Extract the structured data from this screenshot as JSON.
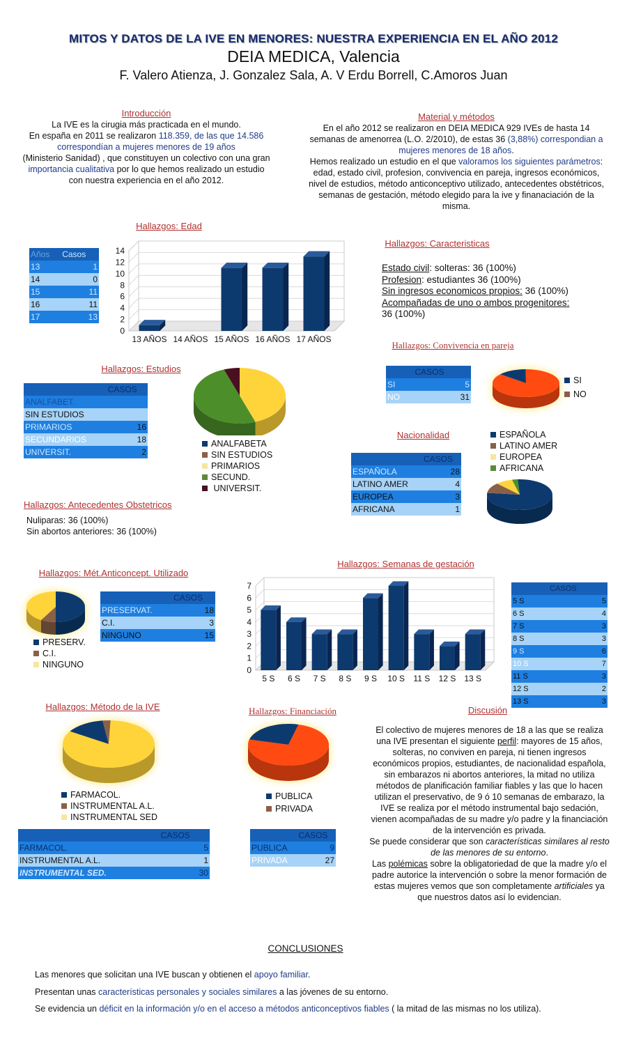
{
  "header": {
    "title": "MITOS Y DATOS DE LA IVE EN MENORES:  NUESTRA EXPERIENCIA EN EL AÑO 2012",
    "subtitle": "DEIA MEDICA, Valencia",
    "authors": "F. Valero Atienza,  J. Gonzalez Sala,  A. V Erdu Borrell, C.Amoros Juan"
  },
  "intro": {
    "heading": "Introducción",
    "p1": "La IVE es la cirugia más practicada en el mundo.",
    "p2a": "En españa en 2011 se realizaron ",
    "p2b": "118.359, de las que 14.586 correspondían a mujeres menores de 19 años",
    "p3a": "(Ministerio Sanidad) , que constituyen un colectivo con una gran ",
    "p3b": "importancia cualitativa",
    "p3c": " por lo que hemos realizado un estudio con nuestra experiencia en el año 2012."
  },
  "methods": {
    "heading": "Material y métodos",
    "p1a": "En el año 2012 se realizaron en DEIA MEDICA 929 IVEs de hasta 14 semanas de amenorrea (L.O. 2/2010), de estas 36 ",
    "p1b": "(3,88%) correspondian a mujeres menores de 18 años",
    "p1c": ".",
    "p2a": "Hemos realizado un estudio en el que ",
    "p2b": "valoramos los siguientes parámetros",
    "p2c": ": edad, estado civil, profesion, convivencia en pareja, ingresos económicos, nivel de estudios, método anticonceptivo utilizado, antecedentes obstétricos, semanas de gestación, método elegido para la ive y finanaciación de la misma."
  },
  "edad": {
    "heading": "Hallazgos:  Edad",
    "col1": "Años",
    "col2": "Casos",
    "rows": [
      {
        "a": "13",
        "c": "1"
      },
      {
        "a": "14",
        "c": "0"
      },
      {
        "a": "15",
        "c": "11"
      },
      {
        "a": "16",
        "c": "11"
      },
      {
        "a": "17",
        "c": "13"
      }
    ]
  },
  "caracteristicas": {
    "heading": "Hallazgos: Caracteristicas",
    "l1a": "Estado civil",
    ":": ":",
    "l1b": ":  solteras: 36 (100%)",
    "l2a": "Profesion",
    "l2b": ": estudiantes 36 (100%)",
    "l3a": "Sin ingresos economicos propios:",
    "l3b": "   36 (100%)",
    "l4a": "Acompañadas de uno o ambos progenitores:",
    "l4b": "36 (100%)"
  },
  "convivencia": {
    "heading": "Hallazgos: Convivencia en pareja",
    "col": "CASOS",
    "rows": [
      {
        "l": "SI",
        "v": "5"
      },
      {
        "l": "NO",
        "v": "31"
      }
    ],
    "legend": [
      "SI",
      "NO"
    ]
  },
  "estudios": {
    "heading": "Hallazgos: Estudios",
    "col": "CASOS",
    "rows": [
      {
        "l": "ANALFABET.",
        "v": ""
      },
      {
        "l": "SIN ESTUDIOS",
        "v": ""
      },
      {
        "l": "PRIMARIOS",
        "v": "16"
      },
      {
        "l": "SECUNDARIOS",
        "v": "18"
      },
      {
        "l": "UNIVERSIT.",
        "v": "2"
      }
    ],
    "legend": [
      "ANALFABETA",
      "SIN ESTUDIOS",
      "PRIMARIOS",
      "SECUND.",
      " UNIVERSIT."
    ]
  },
  "nacionalidad": {
    "heading": "Nacionalidad",
    "col": "CASOS",
    "rows": [
      {
        "l": "ESPAÑOLA",
        "v": "28"
      },
      {
        "l": "LATINO AMER",
        "v": "4"
      },
      {
        "l": "EUROPEA",
        "v": "3"
      },
      {
        "l": "AFRICANA",
        "v": "1"
      }
    ],
    "legend": [
      "ESPAÑOLA",
      "LATINO AMER",
      "EUROPEA",
      "AFRICANA"
    ]
  },
  "obstetricos": {
    "heading": "Hallazgos: Antecedentes Obstetricos",
    "l1": "Nuliparas: 36 (100%)",
    "l2": "Sin abortos anteriores: 36 (100%)"
  },
  "anticonceptivo": {
    "heading": "Hallazgos: Mét.Anticoncept. Utilizado",
    "col": "CASOS",
    "rows": [
      {
        "l": "PRESERVAT.",
        "v": "18"
      },
      {
        "l": "C.I.",
        "v": "3"
      },
      {
        "l": "NINGUNO",
        "v": "15"
      }
    ],
    "legend": [
      "PRESERV.",
      "C.I.",
      "NINGUNO"
    ]
  },
  "semanas": {
    "heading": "Hallazgos: Semanas de gestación",
    "col": "CASOS",
    "rows": [
      {
        "l": "5 S",
        "v": "5"
      },
      {
        "l": "6 S",
        "v": "4"
      },
      {
        "l": "7 S",
        "v": "3"
      },
      {
        "l": "8 S",
        "v": "3"
      },
      {
        "l": "9 S",
        "v": "6"
      },
      {
        "l": "10 S",
        "v": "7"
      },
      {
        "l": "11 S",
        "v": "3"
      },
      {
        "l": "12 S",
        "v": "2"
      },
      {
        "l": "13 S",
        "v": "3"
      }
    ]
  },
  "metodo": {
    "heading": "Hallazgos: Método de la IVE",
    "col": "CASOS",
    "rows": [
      {
        "l": "FARMACOL.",
        "v": "5"
      },
      {
        "l": "INSTRUMENTAL A.L.",
        "v": "1"
      },
      {
        "l": "INSTRUMENTAL SED.",
        "v": "30"
      }
    ],
    "legend": [
      "FARMACOL.",
      "INSTRUMENTAL A.L.",
      "INSTRUMENTAL SED"
    ]
  },
  "financiacion": {
    "heading": "Hallazgos: Financiación",
    "col": "CASOS",
    "rows": [
      {
        "l": "PUBLICA",
        "v": "9"
      },
      {
        "l": "PRIVADA",
        "v": "27"
      }
    ],
    "legend": [
      "PUBLICA",
      "PRIVADA"
    ]
  },
  "discusion": {
    "heading": "Discusión",
    "p1a": "El colectivo de mujeres menores de 18 a las que se realiza una IVE presentan el siguiente ",
    "p1b": "perfil",
    "p1c": ": mayores de 15 años, solteras, no conviven en pareja, ni tienen ingresos económicos propios, estudiantes, de nacionalidad española, sin embarazos ni abortos anteriores, la mitad no utiliza métodos de planificación familiar fiables y las que lo hacen utilizan el preservativo, de 9 ó 10 semanas de embarazo, la IVE se realiza por el método instrumental bajo sedación, vienen acompañadas de su madre y/o padre y la financiación de la intervención es privada.",
    "p2a": "Se puede considerar que son ",
    "p2b": "características similares al resto  de las menores de su entorno",
    "p2c": ".",
    "p3a": "Las ",
    "p3b": "polémicas",
    "p3c": " sobre la obligatoriedad de que la madre y/o el padre autorice la intervención o sobre la menor formación de estas mujeres vemos que son completamente ",
    "p3d": "artificiales",
    "p3e": " ya que nuestros datos así lo evidencian."
  },
  "conclusiones": {
    "heading": "CONCLUSIONES",
    "c1a": "Las menores que solicitan una IVE buscan y obtienen el ",
    "c1b": "apoyo familiar",
    ".": ".",
    "c1c": ".",
    "c2a": "Presentan unas ",
    "c2b": "características personales y sociales similares",
    "c2c": " a las jóvenes de su entorno.",
    "c3a": "Se evidencia un ",
    "c3b": "déficit en la información y/o en el acceso a métodos anticonceptivos fiables",
    "c3c": " ( la mitad de las mismas no los utiliza)."
  },
  "colors": {
    "navy": "#0d3a6e",
    "accent": "#1e7fe0",
    "red": "#b03030",
    "orange": "#ff4a12",
    "yellow": "#ffd43b",
    "green": "#4c8e2a",
    "brown": "#8a6048",
    "maroon": "#4a1020"
  },
  "chart_data": [
    {
      "type": "bar",
      "title": "",
      "categories": [
        "13 AÑOS",
        "14 AÑOS",
        "15 AÑOS",
        "16 AÑOS",
        "17 AÑOS"
      ],
      "values": [
        1,
        0,
        11,
        11,
        13
      ],
      "ylim": [
        0,
        14
      ],
      "yticks": [
        0,
        2,
        4,
        6,
        8,
        10,
        12,
        14
      ]
    },
    {
      "type": "pie",
      "title": "",
      "categories": [
        "SI",
        "NO"
      ],
      "values": [
        5,
        31
      ]
    },
    {
      "type": "pie",
      "title": "",
      "categories": [
        "ANALFABETA",
        "SIN ESTUDIOS",
        "PRIMARIOS",
        "SECUND.",
        "UNIVERSIT."
      ],
      "values": [
        0,
        0,
        16,
        18,
        2
      ]
    },
    {
      "type": "pie",
      "title": "",
      "categories": [
        "ESPAÑOLA",
        "LATINO AMER",
        "EUROPEA",
        "AFRICANA"
      ],
      "values": [
        28,
        4,
        3,
        1
      ]
    },
    {
      "type": "pie",
      "title": "",
      "categories": [
        "PRESERV.",
        "C.I.",
        "NINGUNO"
      ],
      "values": [
        18,
        3,
        15
      ]
    },
    {
      "type": "bar",
      "title": "",
      "categories": [
        "5 S",
        "6 S",
        "7 S",
        "8 S",
        "9 S",
        "10 S",
        "11 S",
        "12 S",
        "13 S"
      ],
      "values": [
        5,
        4,
        3,
        3,
        6,
        7,
        3,
        2,
        3
      ],
      "ylim": [
        0,
        7
      ],
      "yticks": [
        0,
        1,
        2,
        3,
        4,
        5,
        6,
        7
      ]
    },
    {
      "type": "pie",
      "title": "",
      "categories": [
        "FARMACOL.",
        "INSTRUMENTAL A.L.",
        "INSTRUMENTAL SED"
      ],
      "values": [
        5,
        1,
        30
      ]
    },
    {
      "type": "pie",
      "title": "",
      "categories": [
        "PUBLICA",
        "PRIVADA"
      ],
      "values": [
        9,
        27
      ]
    }
  ]
}
